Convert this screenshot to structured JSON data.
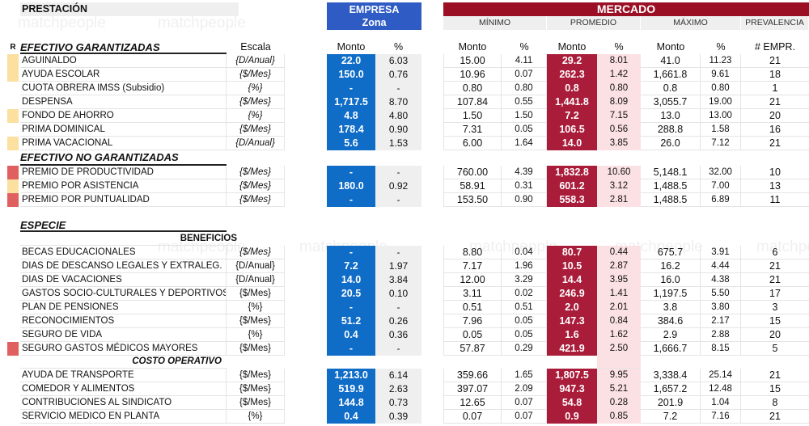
{
  "watermark": "matchpeople",
  "header": {
    "prestacion": "PRESTACIÓN",
    "empresa": "EMPRESA",
    "empresa_sub": "Zona",
    "mercado": "MERCADO",
    "mercado_groups": [
      "MÍNIMO",
      "PROMEDIO",
      "MÁXIMO",
      "PREVALENCIA"
    ]
  },
  "columns": {
    "r": "R",
    "escala": "Escala",
    "monto": "Monto",
    "pct": "%",
    "empr": "# EMPR."
  },
  "colors": {
    "empresa": "#0f6cc7",
    "mercado": "#9b0f24",
    "promedio": "#a91c3a",
    "marker_yellow": "#fbe0a0",
    "marker_red": "#e06060"
  },
  "sections": [
    {
      "title": "EFECTIVO GARANTIZADAS",
      "rows": [
        {
          "name": "AGUINALDO",
          "escala": "{D/Anual}",
          "italic": true,
          "marker": "yellow",
          "emp_monto": "22.0",
          "emp_pct": "6.03",
          "min_monto": "15.00",
          "min_pct": "4.11",
          "prom_monto": "29.2",
          "prom_pct": "8.01",
          "max_monto": "41.0",
          "max_pct": "11.23",
          "empr": "21"
        },
        {
          "name": "AYUDA ESCOLAR",
          "escala": "{$/Mes}",
          "italic": true,
          "marker": "yellow",
          "emp_monto": "150.0",
          "emp_pct": "0.76",
          "min_monto": "10.96",
          "min_pct": "0.07",
          "prom_monto": "262.3",
          "prom_pct": "1.42",
          "max_monto": "1,661.8",
          "max_pct": "9.61",
          "empr": "18"
        },
        {
          "name": "CUOTA OBRERA IMSS (Subsidio)",
          "escala": "{%}",
          "italic": true,
          "marker": "",
          "emp_monto": "-",
          "emp_pct": "-",
          "min_monto": "0.80",
          "min_pct": "0.80",
          "prom_monto": "0.8",
          "prom_pct": "0.80",
          "max_monto": "0.8",
          "max_pct": "0.80",
          "empr": "1"
        },
        {
          "name": "DESPENSA",
          "escala": "{$/Mes}",
          "italic": true,
          "marker": "",
          "emp_monto": "1,717.5",
          "emp_pct": "8.70",
          "min_monto": "107.84",
          "min_pct": "0.55",
          "prom_monto": "1,441.8",
          "prom_pct": "8.09",
          "max_monto": "3,055.7",
          "max_pct": "19.00",
          "empr": "21"
        },
        {
          "name": "FONDO DE AHORRO",
          "escala": "{%}",
          "italic": true,
          "marker": "yellow",
          "emp_monto": "4.8",
          "emp_pct": "4.80",
          "min_monto": "1.50",
          "min_pct": "1.50",
          "prom_monto": "7.2",
          "prom_pct": "7.15",
          "max_monto": "13.0",
          "max_pct": "13.00",
          "empr": "20"
        },
        {
          "name": "PRIMA DOMINICAL",
          "escala": "{$/Mes}",
          "italic": true,
          "marker": "",
          "emp_monto": "178.4",
          "emp_pct": "0.90",
          "min_monto": "7.31",
          "min_pct": "0.05",
          "prom_monto": "106.5",
          "prom_pct": "0.56",
          "max_monto": "288.8",
          "max_pct": "1.58",
          "empr": "16"
        },
        {
          "name": "PRIMA VACACIONAL",
          "escala": "{D/Anual}",
          "italic": true,
          "marker": "yellow",
          "emp_monto": "5.6",
          "emp_pct": "1.53",
          "min_monto": "6.00",
          "min_pct": "1.64",
          "prom_monto": "14.0",
          "prom_pct": "3.85",
          "max_monto": "26.0",
          "max_pct": "7.12",
          "empr": "21"
        }
      ]
    },
    {
      "title": "EFECTIVO NO GARANTIZADAS",
      "rows": [
        {
          "name": "PREMIO DE PRODUCTIVIDAD",
          "escala": "{$/Mes}",
          "italic": true,
          "marker": "red",
          "emp_monto": "-",
          "emp_pct": "-",
          "min_monto": "760.00",
          "min_pct": "4.39",
          "prom_monto": "1,832.8",
          "prom_pct": "10.60",
          "max_monto": "5,148.1",
          "max_pct": "32.00",
          "empr": "10"
        },
        {
          "name": "PREMIO POR ASISTENCIA",
          "escala": "{$/Mes}",
          "italic": true,
          "marker": "yellow",
          "emp_monto": "180.0",
          "emp_pct": "0.92",
          "min_monto": "58.91",
          "min_pct": "0.31",
          "prom_monto": "601.2",
          "prom_pct": "3.12",
          "max_monto": "1,488.5",
          "max_pct": "7.00",
          "empr": "13"
        },
        {
          "name": "PREMIO POR PUNTUALIDAD",
          "escala": "{$/Mes}",
          "italic": true,
          "marker": "red",
          "emp_monto": "-",
          "emp_pct": "-",
          "min_monto": "153.50",
          "min_pct": "0.90",
          "prom_monto": "558.3",
          "prom_pct": "2.81",
          "max_monto": "1,488.5",
          "max_pct": "6.89",
          "empr": "11"
        }
      ]
    },
    {
      "title": "ESPECIE",
      "subgroups": [
        {
          "title": "BENEFICIOS",
          "rows": [
            {
              "name": "BECAS EDUCACIONALES",
              "escala": "{$/Mes}",
              "italic": true,
              "marker": "",
              "emp_monto": "-",
              "emp_pct": "-",
              "min_monto": "8.80",
              "min_pct": "0.04",
              "prom_monto": "80.7",
              "prom_pct": "0.44",
              "max_monto": "675.7",
              "max_pct": "3.91",
              "empr": "6"
            },
            {
              "name": "DIAS DE DESCANSO LEGALES Y  EXTRALEG.",
              "escala": "{D/Anual}",
              "italic": false,
              "marker": "",
              "emp_monto": "7.2",
              "emp_pct": "1.97",
              "min_monto": "7.17",
              "min_pct": "1.96",
              "prom_monto": "10.5",
              "prom_pct": "2.87",
              "max_monto": "16.2",
              "max_pct": "4.44",
              "empr": "21"
            },
            {
              "name": "DIAS DE VACACIONES",
              "escala": "{D/Anual}",
              "italic": false,
              "marker": "",
              "emp_monto": "14.0",
              "emp_pct": "3.84",
              "min_monto": "12.00",
              "min_pct": "3.29",
              "prom_monto": "14.4",
              "prom_pct": "3.95",
              "max_monto": "16.0",
              "max_pct": "4.38",
              "empr": "21"
            },
            {
              "name": "GASTOS SOCIO-CULTURALES Y DEPORTIVOS",
              "escala": "{$/Mes}",
              "italic": false,
              "marker": "",
              "emp_monto": "20.5",
              "emp_pct": "0.10",
              "min_monto": "3.11",
              "min_pct": "0.02",
              "prom_monto": "246.9",
              "prom_pct": "1.41",
              "max_monto": "1,197.5",
              "max_pct": "5.50",
              "empr": "17"
            },
            {
              "name": "PLAN DE PENSIONES",
              "escala": "{%}",
              "italic": false,
              "marker": "",
              "emp_monto": "-",
              "emp_pct": "-",
              "min_monto": "0.51",
              "min_pct": "0.51",
              "prom_monto": "2.0",
              "prom_pct": "2.01",
              "max_monto": "3.8",
              "max_pct": "3.80",
              "empr": "3"
            },
            {
              "name": "RECONOCIMIENTOS",
              "escala": "{$/Mes}",
              "italic": false,
              "marker": "",
              "emp_monto": "51.2",
              "emp_pct": "0.26",
              "min_monto": "7.96",
              "min_pct": "0.05",
              "prom_monto": "147.3",
              "prom_pct": "0.84",
              "max_monto": "384.6",
              "max_pct": "2.17",
              "empr": "15"
            },
            {
              "name": "SEGURO DE VIDA",
              "escala": "{%}",
              "italic": false,
              "marker": "",
              "emp_monto": "0.4",
              "emp_pct": "0.36",
              "min_monto": "0.05",
              "min_pct": "0.05",
              "prom_monto": "1.6",
              "prom_pct": "1.62",
              "max_monto": "2.9",
              "max_pct": "2.88",
              "empr": "20"
            },
            {
              "name": "SEGURO GASTOS MÉDICOS MAYORES",
              "escala": "{$/Mes}",
              "italic": false,
              "marker": "red",
              "emp_monto": "-",
              "emp_pct": "-",
              "min_monto": "57.87",
              "min_pct": "0.29",
              "prom_monto": "421.9",
              "prom_pct": "2.50",
              "max_monto": "1,666.7",
              "max_pct": "8.15",
              "empr": "5"
            }
          ]
        },
        {
          "title": "COSTO OPERATIVO",
          "rows": [
            {
              "name": "AYUDA DE TRANSPORTE",
              "escala": "{$/Mes}",
              "italic": false,
              "marker": "",
              "emp_monto": "1,213.0",
              "emp_pct": "6.14",
              "min_monto": "359.66",
              "min_pct": "1.65",
              "prom_monto": "1,807.5",
              "prom_pct": "9.95",
              "max_monto": "3,338.4",
              "max_pct": "25.14",
              "empr": "21"
            },
            {
              "name": "COMEDOR Y ALIMENTOS",
              "escala": "{$/Mes}",
              "italic": false,
              "marker": "",
              "emp_monto": "519.9",
              "emp_pct": "2.63",
              "min_monto": "397.07",
              "min_pct": "2.09",
              "prom_monto": "947.3",
              "prom_pct": "5.21",
              "max_monto": "1,657.2",
              "max_pct": "12.48",
              "empr": "15"
            },
            {
              "name": "CONTRIBUCIONES AL SINDICATO",
              "escala": "{$/Mes}",
              "italic": false,
              "marker": "",
              "emp_monto": "144.8",
              "emp_pct": "0.73",
              "min_monto": "12.65",
              "min_pct": "0.07",
              "prom_monto": "54.8",
              "prom_pct": "0.28",
              "max_monto": "201.9",
              "max_pct": "1.04",
              "empr": "8"
            },
            {
              "name": "SERVICIO MEDICO EN PLANTA",
              "escala": "{%}",
              "italic": false,
              "marker": "",
              "emp_monto": "0.4",
              "emp_pct": "0.39",
              "min_monto": "0.07",
              "min_pct": "0.07",
              "prom_monto": "0.9",
              "prom_pct": "0.85",
              "max_monto": "7.2",
              "max_pct": "7.16",
              "empr": "21"
            }
          ]
        }
      ]
    }
  ]
}
